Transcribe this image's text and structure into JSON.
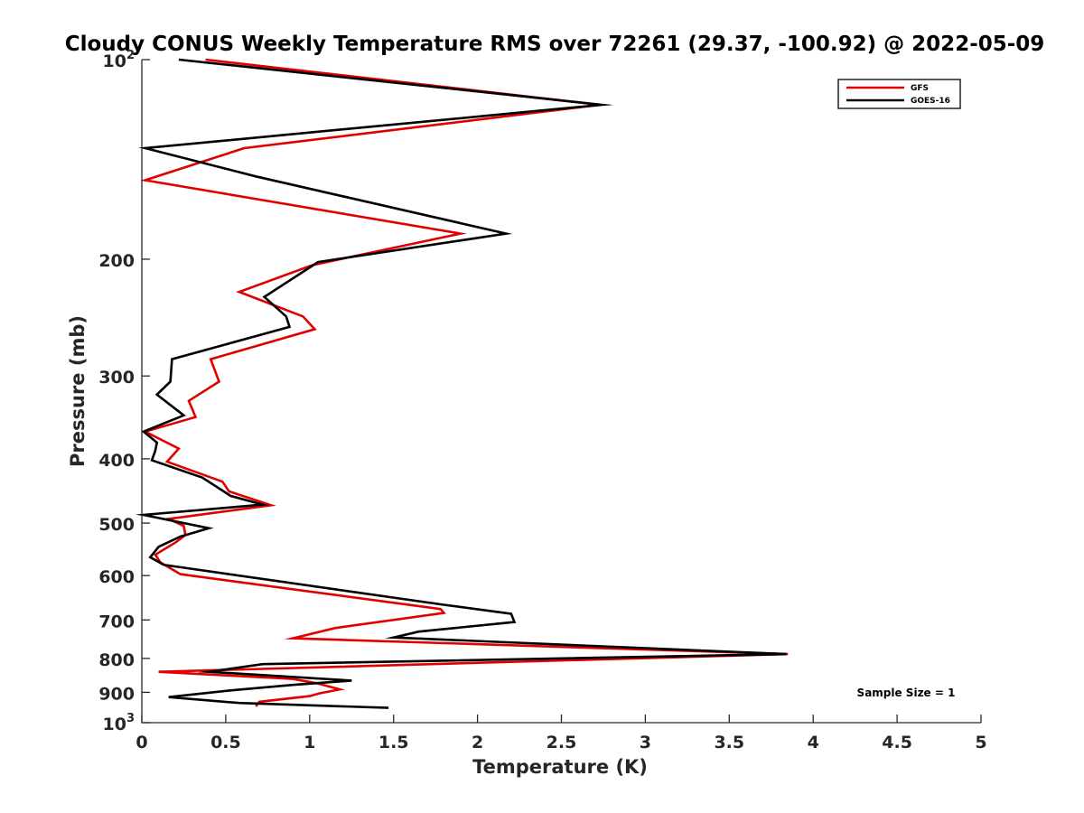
{
  "chart_data": {
    "type": "line",
    "title": "Cloudy CONUS Weekly Temperature RMS over 72261 (29.37, -100.92) @ 2022-05-09",
    "xlabel": "Temperature (K)",
    "ylabel": "Pressure (mb)",
    "xlim": [
      0,
      5
    ],
    "ylim": [
      100,
      1000
    ],
    "y_scale": "log",
    "y_direction": "reverse",
    "x_ticks": [
      0,
      0.5,
      1,
      1.5,
      2,
      2.5,
      3,
      3.5,
      4,
      4.5,
      5
    ],
    "x_tick_labels": [
      "0",
      "0.5",
      "1",
      "1.5",
      "2",
      "2.5",
      "3",
      "3.5",
      "4",
      "4.5",
      "5"
    ],
    "y_ticks": [
      100,
      200,
      300,
      400,
      500,
      600,
      700,
      800,
      900,
      1000
    ],
    "y_tick_labels": [
      {
        "base": "10",
        "exp": "2"
      },
      {
        "base": "200",
        "exp": ""
      },
      {
        "base": "300",
        "exp": ""
      },
      {
        "base": "400",
        "exp": ""
      },
      {
        "base": "500",
        "exp": ""
      },
      {
        "base": "600",
        "exp": ""
      },
      {
        "base": "700",
        "exp": ""
      },
      {
        "base": "800",
        "exp": ""
      },
      {
        "base": "900",
        "exp": ""
      },
      {
        "base": "10",
        "exp": "3"
      }
    ],
    "legend_position": "top-right",
    "annotation": "Sample Size = 1",
    "series": [
      {
        "name": "GFS",
        "color": "#e00000",
        "points": [
          [
            0.38,
            100
          ],
          [
            2.73,
            117
          ],
          [
            0.61,
            136
          ],
          [
            0.02,
            152
          ],
          [
            1.9,
            183
          ],
          [
            1.02,
            204
          ],
          [
            0.58,
            224
          ],
          [
            0.96,
            244
          ],
          [
            1.03,
            255
          ],
          [
            0.41,
            283
          ],
          [
            0.46,
            306
          ],
          [
            0.28,
            327
          ],
          [
            0.32,
            346
          ],
          [
            0.02,
            364
          ],
          [
            0.22,
            386
          ],
          [
            0.15,
            404
          ],
          [
            0.48,
            433
          ],
          [
            0.52,
            448
          ],
          [
            0.77,
            470
          ],
          [
            0.16,
            493
          ],
          [
            0.25,
            505
          ],
          [
            0.26,
            521
          ],
          [
            0.2,
            535
          ],
          [
            0.08,
            558
          ],
          [
            0.11,
            573
          ],
          [
            0.23,
            597
          ],
          [
            1.78,
            674
          ],
          [
            1.8,
            683
          ],
          [
            1.15,
            720
          ],
          [
            0.9,
            746
          ],
          [
            3.85,
            788
          ],
          [
            0.1,
            838
          ],
          [
            0.9,
            859
          ],
          [
            1.05,
            873
          ],
          [
            1.18,
            891
          ],
          [
            1.06,
            903
          ],
          [
            1.0,
            912
          ],
          [
            0.7,
            930
          ],
          [
            0.68,
            945
          ]
        ]
      },
      {
        "name": "GOES-16",
        "color": "#000000",
        "points": [
          [
            0.22,
            100
          ],
          [
            2.74,
            117
          ],
          [
            0.02,
            136
          ],
          [
            0.68,
            150
          ],
          [
            2.17,
            183
          ],
          [
            1.05,
            202
          ],
          [
            0.73,
            228
          ],
          [
            0.86,
            244
          ],
          [
            0.88,
            253
          ],
          [
            0.18,
            283
          ],
          [
            0.17,
            306
          ],
          [
            0.09,
            320
          ],
          [
            0.25,
            344
          ],
          [
            0.01,
            364
          ],
          [
            0.09,
            378
          ],
          [
            0.08,
            389
          ],
          [
            0.06,
            402
          ],
          [
            0.36,
            427
          ],
          [
            0.53,
            455
          ],
          [
            0.72,
            469
          ],
          [
            0.01,
            486
          ],
          [
            0.4,
            509
          ],
          [
            0.23,
            524
          ],
          [
            0.1,
            543
          ],
          [
            0.05,
            563
          ],
          [
            0.13,
            578
          ],
          [
            1.8,
            664
          ],
          [
            2.2,
            685
          ],
          [
            2.22,
            705
          ],
          [
            1.65,
            729
          ],
          [
            1.5,
            744
          ],
          [
            3.84,
            788
          ],
          [
            0.72,
            816
          ],
          [
            0.4,
            838
          ],
          [
            1.25,
            864
          ],
          [
            0.9,
            877
          ],
          [
            0.55,
            893
          ],
          [
            0.16,
            915
          ],
          [
            0.58,
            934
          ],
          [
            1.47,
            950
          ]
        ]
      }
    ]
  }
}
